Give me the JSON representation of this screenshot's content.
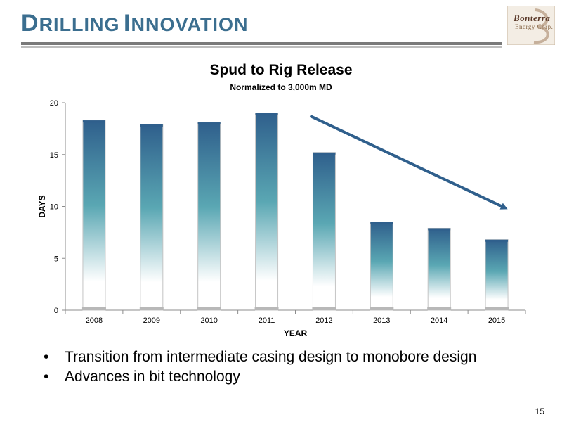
{
  "header": {
    "title_initial_1": "D",
    "title_rest_1": "RILLING",
    "title_initial_2": "I",
    "title_rest_2": "NNOVATION",
    "logo_text": "Bonterra",
    "logo_subtext": "Energy Corp."
  },
  "chart_data": {
    "type": "bar",
    "title": "Spud to Rig Release",
    "subtitle": "Normalized to 3,000m MD",
    "xlabel": "YEAR",
    "ylabel": "DAYS",
    "categories": [
      "2008",
      "2009",
      "2010",
      "2011",
      "2012",
      "2013",
      "2014",
      "2015"
    ],
    "values": [
      18.3,
      17.9,
      18.1,
      19.0,
      15.2,
      8.5,
      7.9,
      6.8
    ],
    "ylim": [
      0,
      20
    ],
    "yticks": [
      0,
      5,
      10,
      15,
      20
    ],
    "grid": false,
    "trend_arrow": {
      "from": "2012",
      "to": "2015",
      "direction": "down"
    },
    "colors": {
      "bar_top": "#2f5f8c",
      "bar_mid": "#5aa7b3",
      "bar_bottom": "#ffffff",
      "arrow": "#2f5f8c"
    }
  },
  "bullets": [
    "Transition from intermediate casing design to monobore design",
    "Advances in bit technology"
  ],
  "page_number": "15"
}
